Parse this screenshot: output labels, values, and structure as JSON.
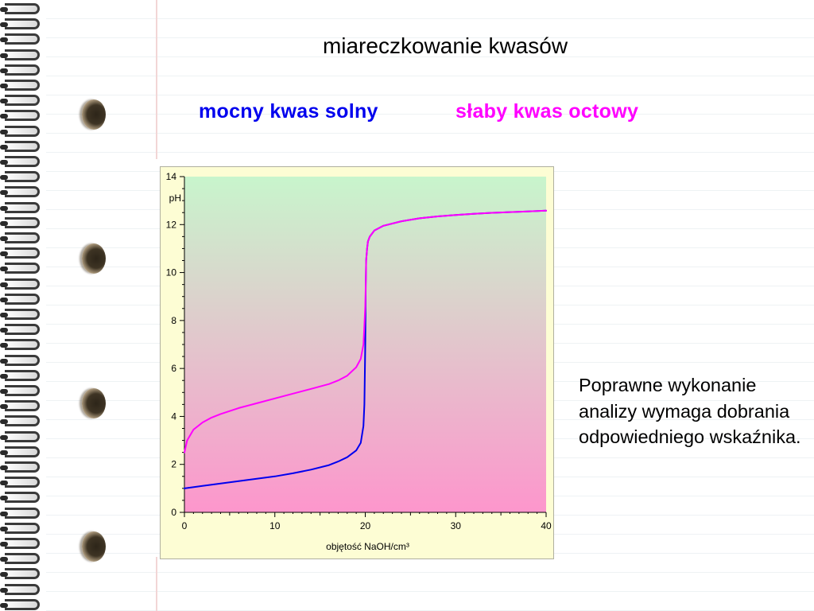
{
  "slide": {
    "title": "miareczkowanie kwasów",
    "legend_strong": "mocny kwas solny",
    "legend_weak": "słaby kwas octowy",
    "note": "Poprawne wykonanie analizy wymaga dobrania odpowiedniego wskaźnika."
  },
  "colors": {
    "strong_acid": "#0000ee",
    "weak_acid": "#ff00ff",
    "plot_bg_top": "#c8f5cc",
    "plot_bg_bottom": "#fd96cc"
  },
  "chart_data": {
    "type": "line",
    "xlabel": "objętość NaOH/cm³",
    "ylabel": "pH",
    "xlim": [
      0,
      40
    ],
    "ylim": [
      0,
      14
    ],
    "x_ticks": [
      0,
      10,
      20,
      30,
      40
    ],
    "y_ticks": [
      0,
      2,
      4,
      6,
      8,
      10,
      12,
      14
    ],
    "grid": false,
    "series": [
      {
        "name": "mocny kwas solny",
        "color": "#0000ee",
        "x": [
          0,
          2,
          4,
          6,
          8,
          10,
          12,
          14,
          16,
          17,
          18,
          19,
          19.5,
          19.8,
          19.9,
          20.0,
          20.05,
          20.1,
          20.2,
          20.3,
          20.5,
          21,
          22,
          24,
          26,
          28,
          30,
          32,
          34,
          36,
          38,
          40
        ],
        "y": [
          1.0,
          1.1,
          1.2,
          1.3,
          1.4,
          1.5,
          1.63,
          1.78,
          1.97,
          2.12,
          2.3,
          2.58,
          2.9,
          3.6,
          4.5,
          7.0,
          9.5,
          10.5,
          11.0,
          11.3,
          11.5,
          11.75,
          11.95,
          12.14,
          12.26,
          12.34,
          12.4,
          12.45,
          12.49,
          12.52,
          12.55,
          12.58
        ]
      },
      {
        "name": "słaby kwas octowy",
        "color": "#ff00ff",
        "x": [
          0,
          0.3,
          1,
          2,
          3,
          4,
          6,
          8,
          10,
          12,
          14,
          16,
          17,
          18,
          19,
          19.5,
          19.8,
          19.9,
          20.0,
          20.05,
          20.1,
          20.2,
          20.3,
          20.5,
          21,
          22,
          24,
          26,
          28,
          30,
          32,
          34,
          36,
          38,
          40
        ],
        "y": [
          2.5,
          3.0,
          3.45,
          3.75,
          3.95,
          4.1,
          4.35,
          4.55,
          4.75,
          4.95,
          5.15,
          5.35,
          5.5,
          5.7,
          6.05,
          6.4,
          7.0,
          7.8,
          8.6,
          9.5,
          10.5,
          11.0,
          11.3,
          11.5,
          11.75,
          11.95,
          12.14,
          12.26,
          12.34,
          12.4,
          12.45,
          12.49,
          12.52,
          12.55,
          12.58
        ]
      }
    ]
  }
}
